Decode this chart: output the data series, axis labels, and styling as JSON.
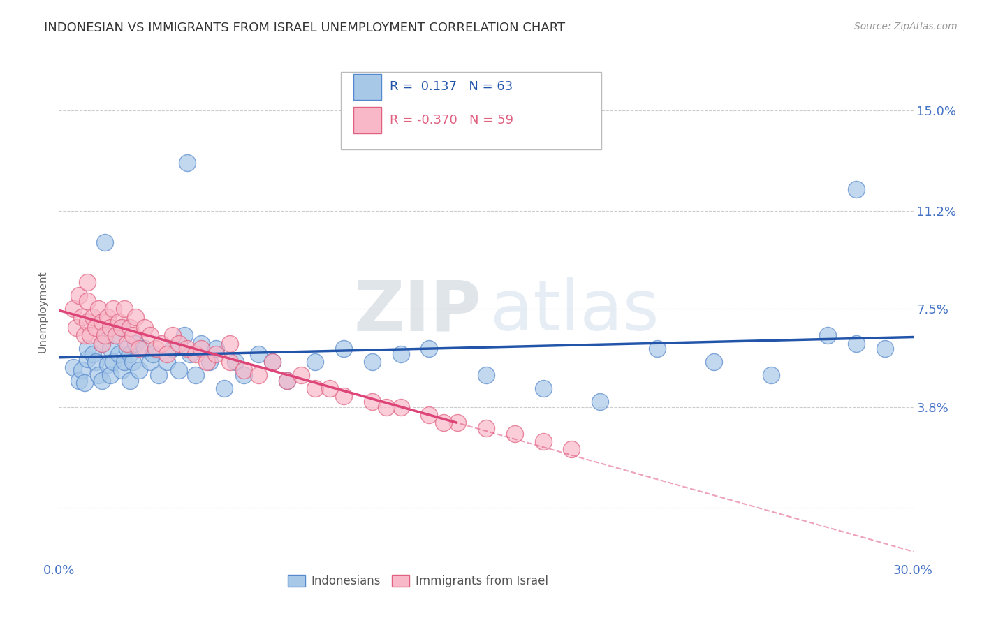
{
  "title": "INDONESIAN VS IMMIGRANTS FROM ISRAEL UNEMPLOYMENT CORRELATION CHART",
  "source_text": "Source: ZipAtlas.com",
  "ylabel": "Unemployment",
  "xlim": [
    0.0,
    0.3
  ],
  "ylim": [
    -0.02,
    0.168
  ],
  "xticks": [
    0.0,
    0.05,
    0.1,
    0.15,
    0.2,
    0.25,
    0.3
  ],
  "xticklabels": [
    "0.0%",
    "",
    "",
    "",
    "",
    "",
    "30.0%"
  ],
  "ytick_positions": [
    0.0,
    0.038,
    0.075,
    0.112,
    0.15
  ],
  "yticklabels": [
    "",
    "3.8%",
    "7.5%",
    "11.2%",
    "15.0%"
  ],
  "blue_R": 0.137,
  "blue_N": 63,
  "pink_R": -0.37,
  "pink_N": 59,
  "blue_color": "#a8c8e8",
  "pink_color": "#f8b8c8",
  "blue_edge_color": "#5588cc",
  "pink_edge_color": "#e06080",
  "blue_line_color": "#2255aa",
  "pink_line_color": "#dd4477",
  "legend_label_blue": "Indonesians",
  "legend_label_pink": "Immigrants from Israel",
  "background_color": "#ffffff",
  "grid_color": "#cccccc",
  "title_color": "#333333",
  "axis_label_color": "#4472c4",
  "blue_x": [
    0.005,
    0.007,
    0.008,
    0.009,
    0.01,
    0.01,
    0.012,
    0.013,
    0.014,
    0.015,
    0.015,
    0.016,
    0.017,
    0.018,
    0.018,
    0.019,
    0.02,
    0.021,
    0.022,
    0.022,
    0.023,
    0.024,
    0.025,
    0.025,
    0.026,
    0.027,
    0.028,
    0.03,
    0.032,
    0.033,
    0.035,
    0.038,
    0.04,
    0.042,
    0.044,
    0.046,
    0.048,
    0.05,
    0.053,
    0.055,
    0.058,
    0.062,
    0.065,
    0.07,
    0.075,
    0.08,
    0.09,
    0.1,
    0.11,
    0.12,
    0.13,
    0.15,
    0.17,
    0.19,
    0.21,
    0.23,
    0.25,
    0.27,
    0.28,
    0.29,
    0.016,
    0.045,
    0.28
  ],
  "blue_y": [
    0.053,
    0.048,
    0.052,
    0.047,
    0.056,
    0.06,
    0.058,
    0.055,
    0.05,
    0.062,
    0.048,
    0.065,
    0.054,
    0.05,
    0.06,
    0.055,
    0.065,
    0.058,
    0.052,
    0.068,
    0.055,
    0.06,
    0.058,
    0.048,
    0.055,
    0.062,
    0.052,
    0.06,
    0.055,
    0.058,
    0.05,
    0.055,
    0.06,
    0.052,
    0.065,
    0.058,
    0.05,
    0.062,
    0.055,
    0.06,
    0.045,
    0.055,
    0.05,
    0.058,
    0.055,
    0.048,
    0.055,
    0.06,
    0.055,
    0.058,
    0.06,
    0.05,
    0.045,
    0.04,
    0.06,
    0.055,
    0.05,
    0.065,
    0.062,
    0.06,
    0.1,
    0.13,
    0.12
  ],
  "pink_x": [
    0.005,
    0.006,
    0.007,
    0.008,
    0.009,
    0.01,
    0.01,
    0.011,
    0.012,
    0.013,
    0.014,
    0.015,
    0.015,
    0.016,
    0.017,
    0.018,
    0.019,
    0.02,
    0.021,
    0.022,
    0.023,
    0.024,
    0.025,
    0.026,
    0.027,
    0.028,
    0.03,
    0.032,
    0.034,
    0.036,
    0.038,
    0.04,
    0.042,
    0.045,
    0.048,
    0.05,
    0.052,
    0.055,
    0.06,
    0.065,
    0.07,
    0.08,
    0.09,
    0.1,
    0.11,
    0.12,
    0.13,
    0.14,
    0.15,
    0.16,
    0.17,
    0.18,
    0.06,
    0.075,
    0.085,
    0.095,
    0.115,
    0.135,
    0.01
  ],
  "pink_y": [
    0.075,
    0.068,
    0.08,
    0.072,
    0.065,
    0.07,
    0.078,
    0.065,
    0.072,
    0.068,
    0.075,
    0.07,
    0.062,
    0.065,
    0.072,
    0.068,
    0.075,
    0.065,
    0.07,
    0.068,
    0.075,
    0.062,
    0.068,
    0.065,
    0.072,
    0.06,
    0.068,
    0.065,
    0.06,
    0.062,
    0.058,
    0.065,
    0.062,
    0.06,
    0.058,
    0.06,
    0.055,
    0.058,
    0.055,
    0.052,
    0.05,
    0.048,
    0.045,
    0.042,
    0.04,
    0.038,
    0.035,
    0.032,
    0.03,
    0.028,
    0.025,
    0.022,
    0.062,
    0.055,
    0.05,
    0.045,
    0.038,
    0.032,
    0.085
  ]
}
